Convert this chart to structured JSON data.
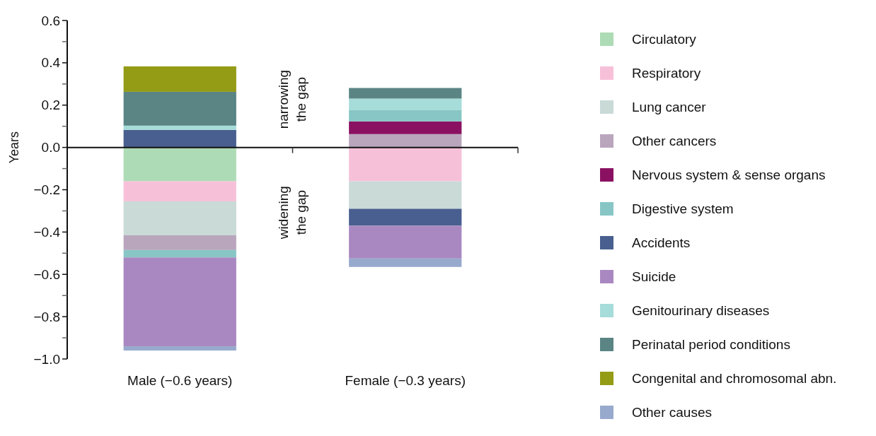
{
  "chart_data": {
    "type": "bar",
    "stacked": true,
    "ylabel": "Years",
    "categories": [
      "Male (−0.6 years)",
      "Female (−0.3 years)"
    ],
    "series": [
      {
        "name": "Circulatory",
        "color": "#addbb5",
        "values": [
          -0.16,
          null
        ]
      },
      {
        "name": "Respiratory",
        "color": "#f7c0d9",
        "values": [
          -0.095,
          -0.16
        ]
      },
      {
        "name": "Lung cancer",
        "color": "#c9dad7",
        "values": [
          -0.16,
          -0.13
        ]
      },
      {
        "name": "Other cancers",
        "color": "#b9a6bd",
        "values": [
          -0.07,
          0.063
        ]
      },
      {
        "name": "Nervous system & sense organs",
        "color": "#8a1162",
        "values": [
          null,
          0.06
        ]
      },
      {
        "name": "Digestive system",
        "color": "#88c6c6",
        "values": [
          -0.035,
          0.055
        ]
      },
      {
        "name": "Accidents",
        "color": "#485f8f",
        "values": [
          0.083,
          -0.08
        ]
      },
      {
        "name": "Suicide",
        "color": "#a988c1",
        "values": [
          -0.42,
          -0.155
        ]
      },
      {
        "name": "Genitourinary diseases",
        "color": "#a6dcd9",
        "values": [
          0.02,
          0.053
        ]
      },
      {
        "name": "Perinatal period conditions",
        "color": "#5a8584",
        "values": [
          0.16,
          0.05
        ]
      },
      {
        "name": "Congenital and chromosomal abn.",
        "color": "#949b14",
        "values": [
          0.12,
          null
        ]
      },
      {
        "name": "Other causes",
        "color": "#97aacd",
        "values": [
          -0.02,
          -0.04
        ]
      }
    ],
    "ylim": [
      -1,
      0.6
    ],
    "yticks": [
      {
        "value": -1,
        "label": "−1.0"
      },
      {
        "value": -0.9,
        "label": null
      },
      {
        "value": -0.8,
        "label": "−0.8"
      },
      {
        "value": -0.7,
        "label": null
      },
      {
        "value": -0.6,
        "label": "−0.6"
      },
      {
        "value": -0.5,
        "label": null
      },
      {
        "value": -0.4,
        "label": "−0.4"
      },
      {
        "value": -0.3,
        "label": null
      },
      {
        "value": -0.2,
        "label": "−0.2"
      },
      {
        "value": -0.1,
        "label": null
      },
      {
        "value": 0,
        "label": "0.0"
      },
      {
        "value": 0.1,
        "label": null
      },
      0.2,
      {
        "value": 0.3,
        "label": null
      },
      0.4,
      {
        "value": 0.5,
        "label": null
      },
      0.6
    ],
    "legend": "right",
    "annotations": [
      "narrowing the gap",
      "widening the gap"
    ]
  }
}
